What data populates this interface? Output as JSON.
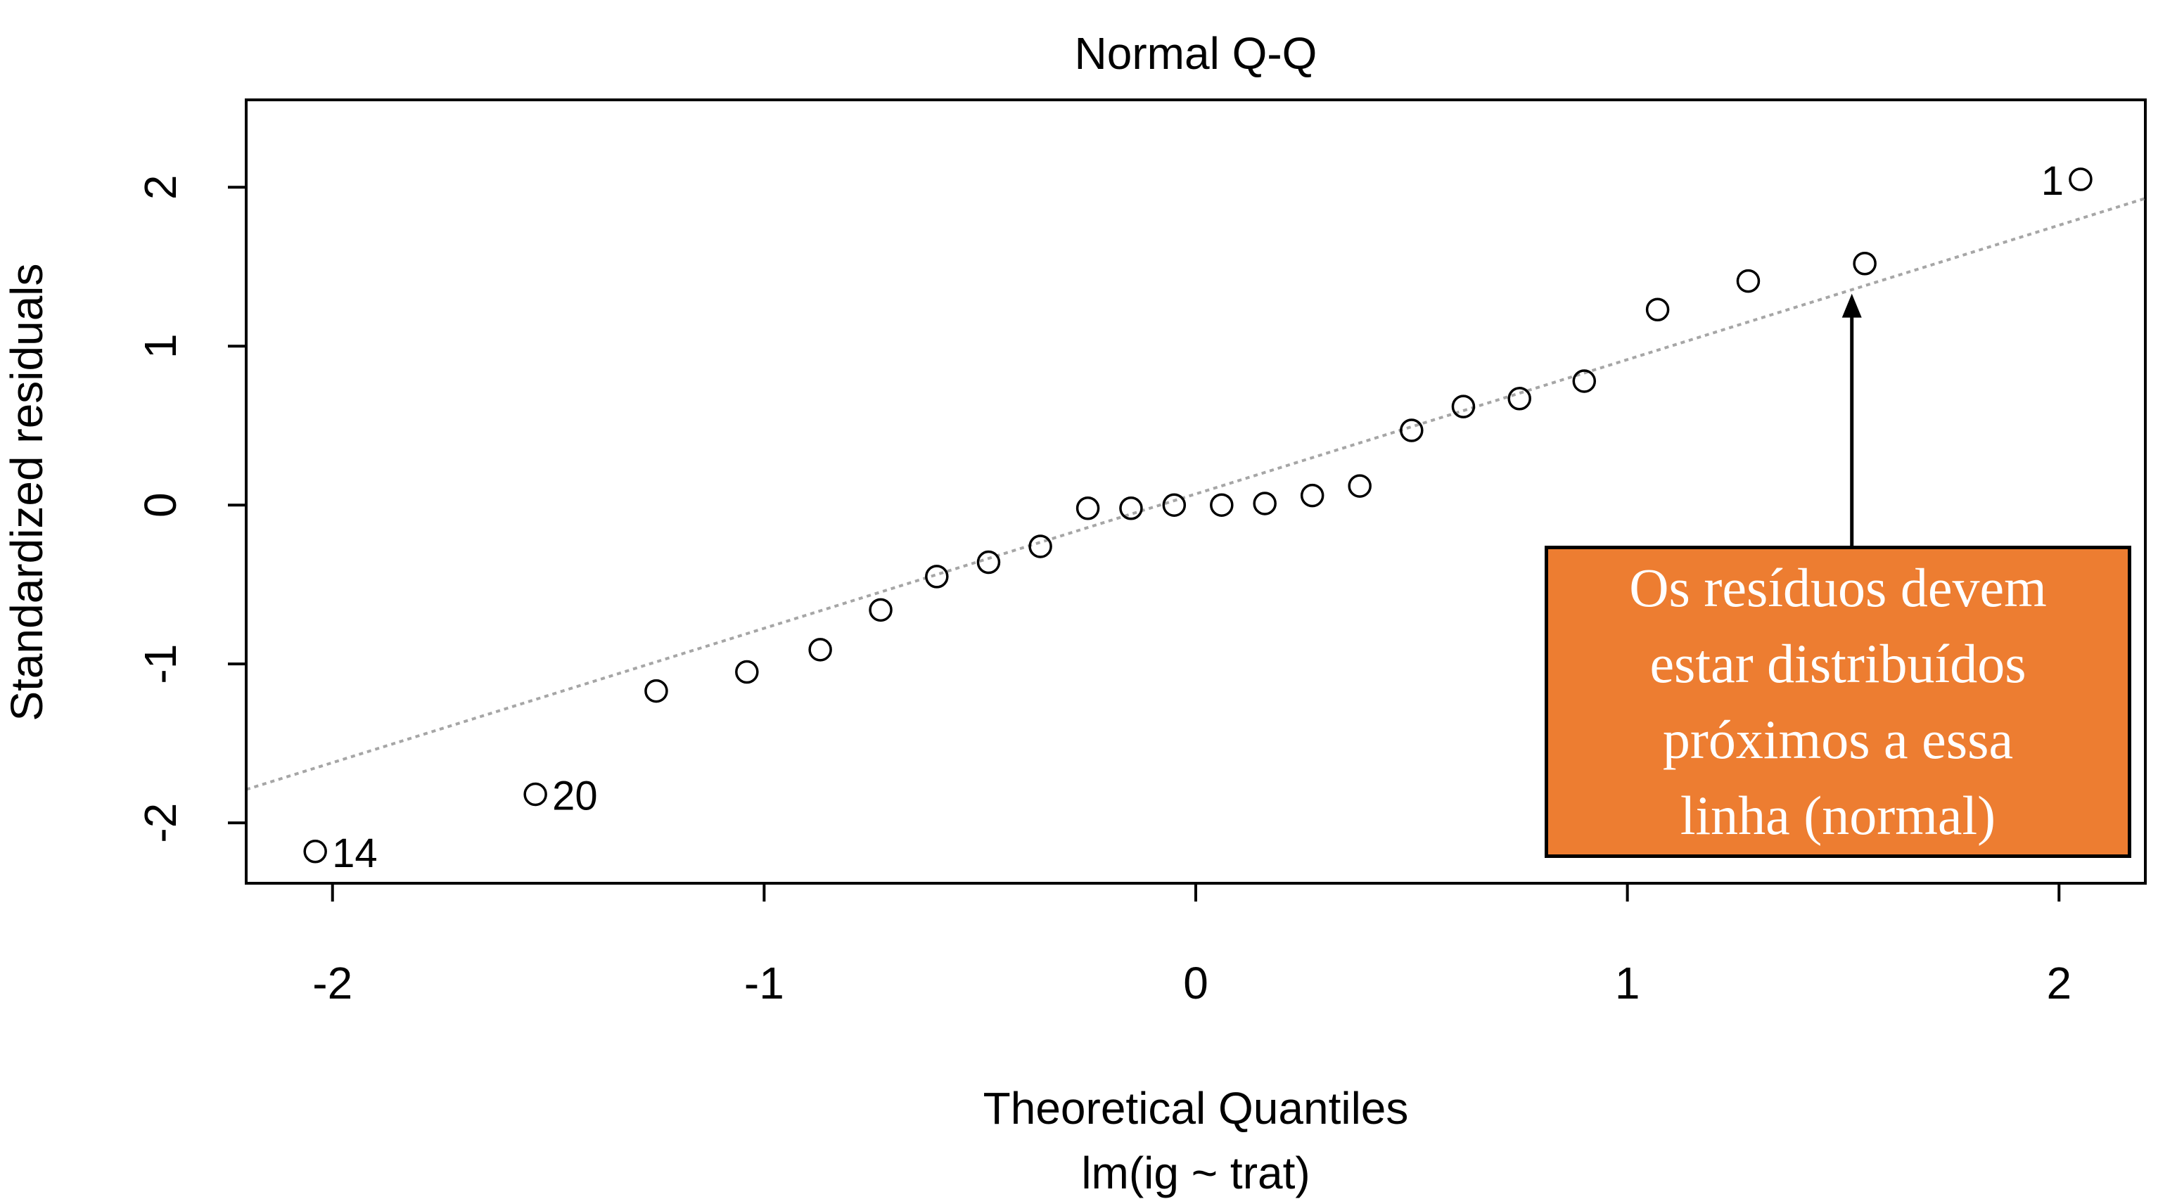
{
  "chart_data": {
    "type": "scatter",
    "title": "Normal Q-Q",
    "xlabel": "Theoretical Quantiles",
    "subtitle": "lm(ig ~ trat)",
    "ylabel": "Standardized residuals",
    "xlim": [
      -2.2,
      2.2
    ],
    "ylim": [
      -2.38,
      2.55
    ],
    "xticks": [
      -2,
      -1,
      0,
      1,
      2
    ],
    "yticks": [
      -2,
      -1,
      0,
      1,
      2
    ],
    "points": [
      {
        "x": -2.04,
        "y": -2.18,
        "label": "14"
      },
      {
        "x": -1.53,
        "y": -1.82,
        "label": "20"
      },
      {
        "x": -1.25,
        "y": -1.17
      },
      {
        "x": -1.04,
        "y": -1.05
      },
      {
        "x": -0.87,
        "y": -0.91
      },
      {
        "x": -0.73,
        "y": -0.66
      },
      {
        "x": -0.6,
        "y": -0.45
      },
      {
        "x": -0.48,
        "y": -0.36
      },
      {
        "x": -0.36,
        "y": -0.26
      },
      {
        "x": -0.25,
        "y": -0.02
      },
      {
        "x": -0.15,
        "y": -0.02
      },
      {
        "x": -0.05,
        "y": 0.0
      },
      {
        "x": 0.06,
        "y": 0.0
      },
      {
        "x": 0.16,
        "y": 0.01
      },
      {
        "x": 0.27,
        "y": 0.06
      },
      {
        "x": 0.38,
        "y": 0.12
      },
      {
        "x": 0.5,
        "y": 0.47
      },
      {
        "x": 0.62,
        "y": 0.62
      },
      {
        "x": 0.75,
        "y": 0.67
      },
      {
        "x": 0.9,
        "y": 0.78
      },
      {
        "x": 1.07,
        "y": 1.23
      },
      {
        "x": 1.28,
        "y": 1.41
      },
      {
        "x": 1.55,
        "y": 1.52
      },
      {
        "x": 2.05,
        "y": 2.05,
        "label": "1"
      }
    ],
    "reference_line": {
      "style": "dotted",
      "color": "#a6a6a6",
      "x": [
        -2.2,
        2.2
      ],
      "y": [
        -1.79,
        1.93
      ]
    },
    "annotation": {
      "text_lines": [
        "Os resíduos devem",
        "estar distribuídos",
        "próximos a essa",
        "linha (normal)"
      ],
      "fill": "#ED7D31",
      "arrow_target": {
        "x": 1.52,
        "y": 1.33
      }
    },
    "grid": false,
    "legend": "none"
  }
}
